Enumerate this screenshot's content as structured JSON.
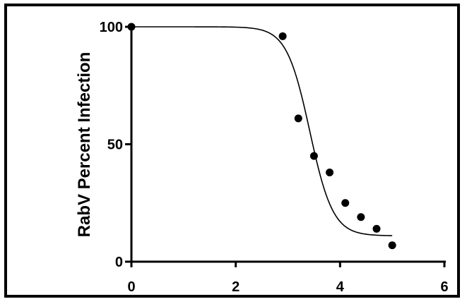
{
  "chart_data": {
    "type": "scatter",
    "title": "",
    "xlabel": "",
    "ylabel": "RabV Percent Infection",
    "xlim": [
      0,
      6
    ],
    "ylim": [
      0,
      100
    ],
    "x_ticks": [
      0,
      2,
      4,
      6
    ],
    "y_ticks": [
      0,
      50,
      100
    ],
    "grid": false,
    "legend": "none",
    "point_color": "#000000",
    "series": [
      {
        "x": [
          0,
          2.9,
          3.2,
          3.5,
          3.8,
          4.1,
          4.4,
          4.7,
          5.0
        ],
        "y": [
          100,
          96,
          61,
          45,
          38,
          25,
          19,
          14,
          7
        ]
      }
    ],
    "fit_curve": {
      "type": "sigmoid",
      "top": 100,
      "bottom": 11,
      "midpoint": 3.42,
      "slope": 4.5,
      "x_range": [
        0,
        5.0
      ]
    }
  }
}
